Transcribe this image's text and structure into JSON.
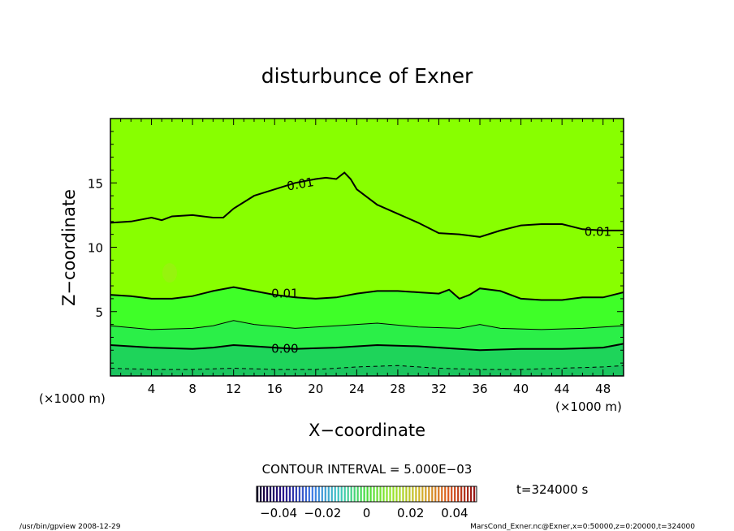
{
  "chart_data": {
    "type": "contour",
    "title": "disturbunce of Exner",
    "xlabel": "X−coordinate",
    "ylabel": "Z−coordinate",
    "x_unit": "(×1000 m)",
    "y_unit": "(×1000 m)",
    "xlim": [
      0,
      50
    ],
    "ylim": [
      0,
      20
    ],
    "x_ticks": [
      4,
      8,
      12,
      16,
      20,
      24,
      28,
      32,
      36,
      40,
      44,
      48
    ],
    "y_ticks": [
      5,
      10,
      15
    ],
    "contour_interval": "CONTOUR INTERVAL = 5.000E−03",
    "time_label": "t=324000 s",
    "colorbar": {
      "tick_labels": [
        "−0.04",
        "−0.02",
        "0",
        "0.02",
        "0.04"
      ],
      "tick_values": [
        -0.04,
        -0.02,
        0,
        0.02,
        0.04
      ],
      "range": [
        -0.05,
        0.05
      ]
    },
    "contour_lines": [
      {
        "level": 0.01,
        "label": "0.01",
        "style": "bold",
        "points": [
          [
            0,
            11.9
          ],
          [
            2,
            12.0
          ],
          [
            4,
            12.3
          ],
          [
            5,
            12.1
          ],
          [
            6,
            12.4
          ],
          [
            8,
            12.5
          ],
          [
            10,
            12.3
          ],
          [
            11,
            12.3
          ],
          [
            12,
            13.0
          ],
          [
            14,
            14.0
          ],
          [
            16,
            14.5
          ],
          [
            18,
            15.0
          ],
          [
            20,
            15.3
          ],
          [
            21,
            15.4
          ],
          [
            22,
            15.3
          ],
          [
            22.8,
            15.8
          ],
          [
            23.4,
            15.3
          ],
          [
            24,
            14.5
          ],
          [
            26,
            13.3
          ],
          [
            28,
            12.6
          ],
          [
            30,
            11.9
          ],
          [
            32,
            11.1
          ],
          [
            34,
            11.0
          ],
          [
            36,
            10.8
          ],
          [
            38,
            11.3
          ],
          [
            40,
            11.7
          ],
          [
            42,
            11.8
          ],
          [
            44,
            11.8
          ],
          [
            46,
            11.4
          ],
          [
            48,
            11.3
          ],
          [
            50,
            11.3
          ]
        ]
      },
      {
        "level": 0.01,
        "label": "0.01",
        "style": "bold",
        "points": [
          [
            0,
            6.3
          ],
          [
            2,
            6.2
          ],
          [
            4,
            6.0
          ],
          [
            6,
            6.0
          ],
          [
            8,
            6.2
          ],
          [
            10,
            6.6
          ],
          [
            12,
            6.9
          ],
          [
            14,
            6.6
          ],
          [
            16,
            6.3
          ],
          [
            18,
            6.1
          ],
          [
            20,
            6.0
          ],
          [
            22,
            6.1
          ],
          [
            24,
            6.4
          ],
          [
            26,
            6.6
          ],
          [
            28,
            6.6
          ],
          [
            30,
            6.5
          ],
          [
            32,
            6.4
          ],
          [
            33,
            6.7
          ],
          [
            34,
            6.0
          ],
          [
            35,
            6.3
          ],
          [
            36,
            6.8
          ],
          [
            38,
            6.6
          ],
          [
            40,
            6.0
          ],
          [
            42,
            5.9
          ],
          [
            44,
            5.9
          ],
          [
            46,
            6.1
          ],
          [
            48,
            6.1
          ],
          [
            50,
            6.5
          ]
        ]
      },
      {
        "level": 0.005,
        "label": "",
        "style": "thin",
        "points": [
          [
            0,
            3.9
          ],
          [
            4,
            3.6
          ],
          [
            8,
            3.7
          ],
          [
            10,
            3.9
          ],
          [
            12,
            4.3
          ],
          [
            14,
            4.0
          ],
          [
            18,
            3.7
          ],
          [
            22,
            3.9
          ],
          [
            26,
            4.1
          ],
          [
            30,
            3.8
          ],
          [
            34,
            3.7
          ],
          [
            36,
            4.0
          ],
          [
            38,
            3.7
          ],
          [
            42,
            3.6
          ],
          [
            46,
            3.7
          ],
          [
            50,
            3.9
          ]
        ]
      },
      {
        "level": 0.0,
        "label": "0.00",
        "style": "bold",
        "points": [
          [
            0,
            2.4
          ],
          [
            4,
            2.2
          ],
          [
            8,
            2.1
          ],
          [
            10,
            2.2
          ],
          [
            12,
            2.4
          ],
          [
            14,
            2.3
          ],
          [
            18,
            2.1
          ],
          [
            22,
            2.2
          ],
          [
            26,
            2.4
          ],
          [
            30,
            2.3
          ],
          [
            34,
            2.1
          ],
          [
            36,
            2.0
          ],
          [
            40,
            2.1
          ],
          [
            44,
            2.1
          ],
          [
            48,
            2.2
          ],
          [
            50,
            2.5
          ]
        ]
      },
      {
        "level": -0.005,
        "label": "",
        "style": "dashed",
        "points": [
          [
            0,
            0.6
          ],
          [
            4,
            0.5
          ],
          [
            8,
            0.5
          ],
          [
            12,
            0.6
          ],
          [
            16,
            0.5
          ],
          [
            20,
            0.5
          ],
          [
            24,
            0.7
          ],
          [
            28,
            0.8
          ],
          [
            32,
            0.6
          ],
          [
            36,
            0.5
          ],
          [
            40,
            0.5
          ],
          [
            44,
            0.6
          ],
          [
            48,
            0.7
          ],
          [
            50,
            0.8
          ]
        ]
      }
    ],
    "fill_colors": {
      "above_0.010": "#88ff00",
      "0.005_to_0.010": "#3fff28",
      "0.000_to_0.005": "#2bef48",
      "-0.005_to_0.000": "#1ed45a",
      "below_-0.005": "#1bc45e"
    }
  },
  "footer": {
    "left": "/usr/bin/gpview   2008-12-29",
    "right": "MarsCond_Exner.nc@Exner,x=0:50000,z=0:20000,t=324000"
  }
}
